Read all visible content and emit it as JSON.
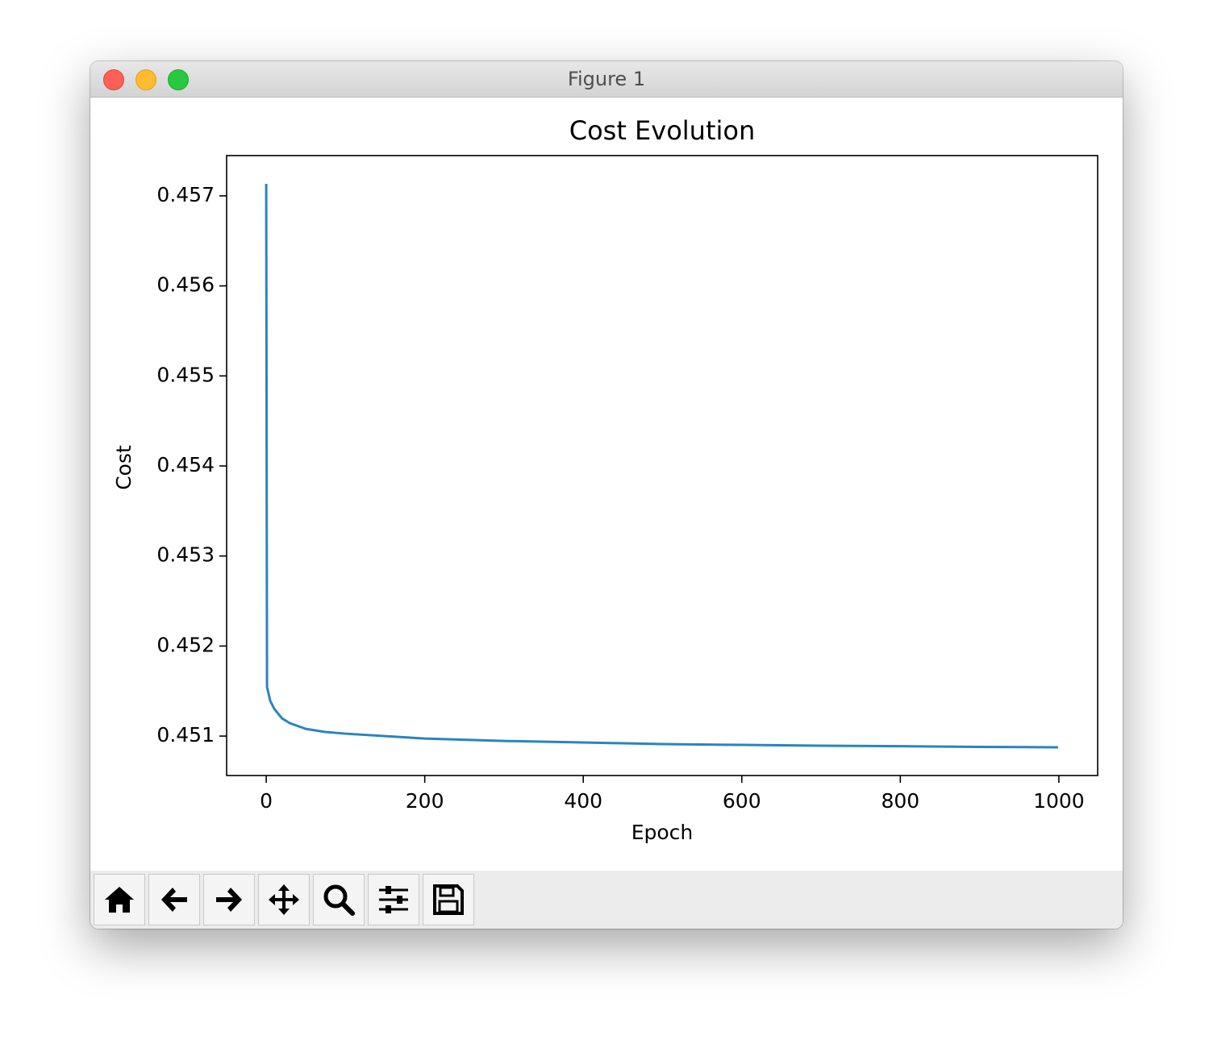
{
  "window": {
    "title": "Figure 1"
  },
  "chart_data": {
    "type": "line",
    "title": "Cost Evolution",
    "x_label": "Epoch",
    "y_label": "Cost",
    "x": [
      0,
      1,
      5,
      10,
      20,
      30,
      50,
      75,
      100,
      150,
      200,
      300,
      400,
      500,
      600,
      700,
      800,
      900,
      999
    ],
    "values": [
      0.457134,
      0.451545,
      0.451393,
      0.451304,
      0.451196,
      0.451143,
      0.45108,
      0.451045,
      0.451027,
      0.451,
      0.450973,
      0.450946,
      0.450929,
      0.450911,
      0.450902,
      0.450893,
      0.450888,
      0.45088,
      0.450875
    ],
    "color": "#2a84be",
    "xlim": [
      -49.95,
      1048.95
    ],
    "xticks": [
      0,
      200,
      400,
      600,
      800,
      1000
    ],
    "ylim": [
      0.450562,
      0.457447
    ],
    "yticks": [
      0.451,
      0.452,
      0.453,
      0.454,
      0.455,
      0.456,
      0.457
    ],
    "grid": false
  }
}
